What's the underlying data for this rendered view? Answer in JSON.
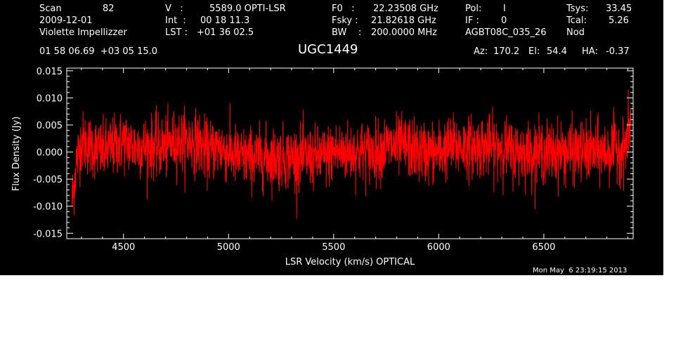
{
  "header": {
    "scan_label": "Scan",
    "scan_value": "82",
    "date": "2009-12-01",
    "observer": "Violette Impellizzer",
    "v_label": "V   :",
    "v_value": "5589.0 OPTI-LSR",
    "int_label": "Int  :",
    "int_value": "00 18 11.3",
    "lst_label": "LST :",
    "lst_value": "+01 36 02.5",
    "f0_label": "F0   :",
    "f0_value": "22.23508 GHz",
    "fsky_label": "Fsky :",
    "fsky_value": "21.82618 GHz",
    "bw_label": "BW    :",
    "bw_value": "200.0000 MHz",
    "pol_label": "Pol:",
    "pol_value": "I",
    "if_label": "IF :",
    "if_value": "0",
    "proc_value": "AGBT08C_035_26",
    "tsys_label": "Tsys:",
    "tsys_value": "33.45",
    "tcal_label": "Tcal:",
    "tcal_value": "5.26",
    "mode_value": "Nod",
    "coords": "01 58 06.69  +03 05 15.0",
    "source": "UGC1449",
    "az_label": "Az:",
    "az_value": "170.2",
    "el_label": "El:",
    "el_value": "54.4",
    "ha_label": "HA:",
    "ha_value": "-0.37"
  },
  "footer": {
    "timestamp": "Mon May  6 23:19:15 2013"
  },
  "colors": {
    "background": "#000000",
    "trace": "#ff0000",
    "axes": "#ffffff",
    "page": "#ffffff"
  },
  "chart_data": {
    "type": "line",
    "title": "UGC1449",
    "xlabel": "LSR Velocity (km/s) OPTICAL",
    "ylabel": "Flux Density (Jy)",
    "xlim": [
      4230,
      6925
    ],
    "ylim": [
      -0.016,
      0.0155
    ],
    "x_ticks": [
      4500,
      5000,
      5500,
      6000,
      6500
    ],
    "x_tick_labels": [
      "4500",
      "5000",
      "5500",
      "6000",
      "6500"
    ],
    "y_ticks": [
      -0.015,
      -0.01,
      -0.005,
      0.0,
      0.005,
      0.01,
      0.015
    ],
    "y_tick_labels": [
      "-0.015",
      "-0.010",
      "-0.005",
      "0.000",
      "0.005",
      "0.010",
      "0.015"
    ],
    "grid": false,
    "series": [
      {
        "color": "#ff0000",
        "x": [
          4255,
          4265,
          4275,
          4300,
          4350,
          4400,
          4450,
          4500,
          4550,
          4600,
          4650,
          4700,
          4750,
          4800,
          4850,
          4900,
          4950,
          5000,
          5050,
          5100,
          5150,
          5200,
          5250,
          5300,
          5350,
          5400,
          5450,
          5500,
          5550,
          5600,
          5650,
          5700,
          5750,
          5800,
          5850,
          5900,
          5950,
          6000,
          6050,
          6100,
          6150,
          6200,
          6250,
          6300,
          6350,
          6400,
          6450,
          6500,
          6550,
          6600,
          6650,
          6700,
          6750,
          6800,
          6850,
          6880,
          6900,
          6915
        ],
        "y": [
          -0.009,
          -0.006,
          -0.002,
          0.002,
          0.001,
          0.0,
          0.001,
          0.002,
          0.001,
          0.001,
          0.001,
          0.001,
          0.002,
          0.002,
          0.002,
          0.0,
          0.001,
          0.0,
          -0.001,
          -0.001,
          -0.001,
          -0.001,
          -0.001,
          -0.001,
          -0.001,
          -0.001,
          -0.001,
          0.0,
          0.0,
          0.0,
          0.0,
          0.0,
          0.001,
          0.001,
          0.001,
          0.0,
          0.0,
          0.0,
          0.001,
          0.001,
          0.001,
          0.001,
          0.001,
          0.001,
          0.0,
          0.0,
          0.0,
          0.0,
          0.0,
          0.0,
          0.0,
          0.0,
          0.0,
          0.0,
          0.001,
          0.0,
          0.003,
          0.006
        ],
        "noise_rms": 0.0028
      }
    ]
  }
}
